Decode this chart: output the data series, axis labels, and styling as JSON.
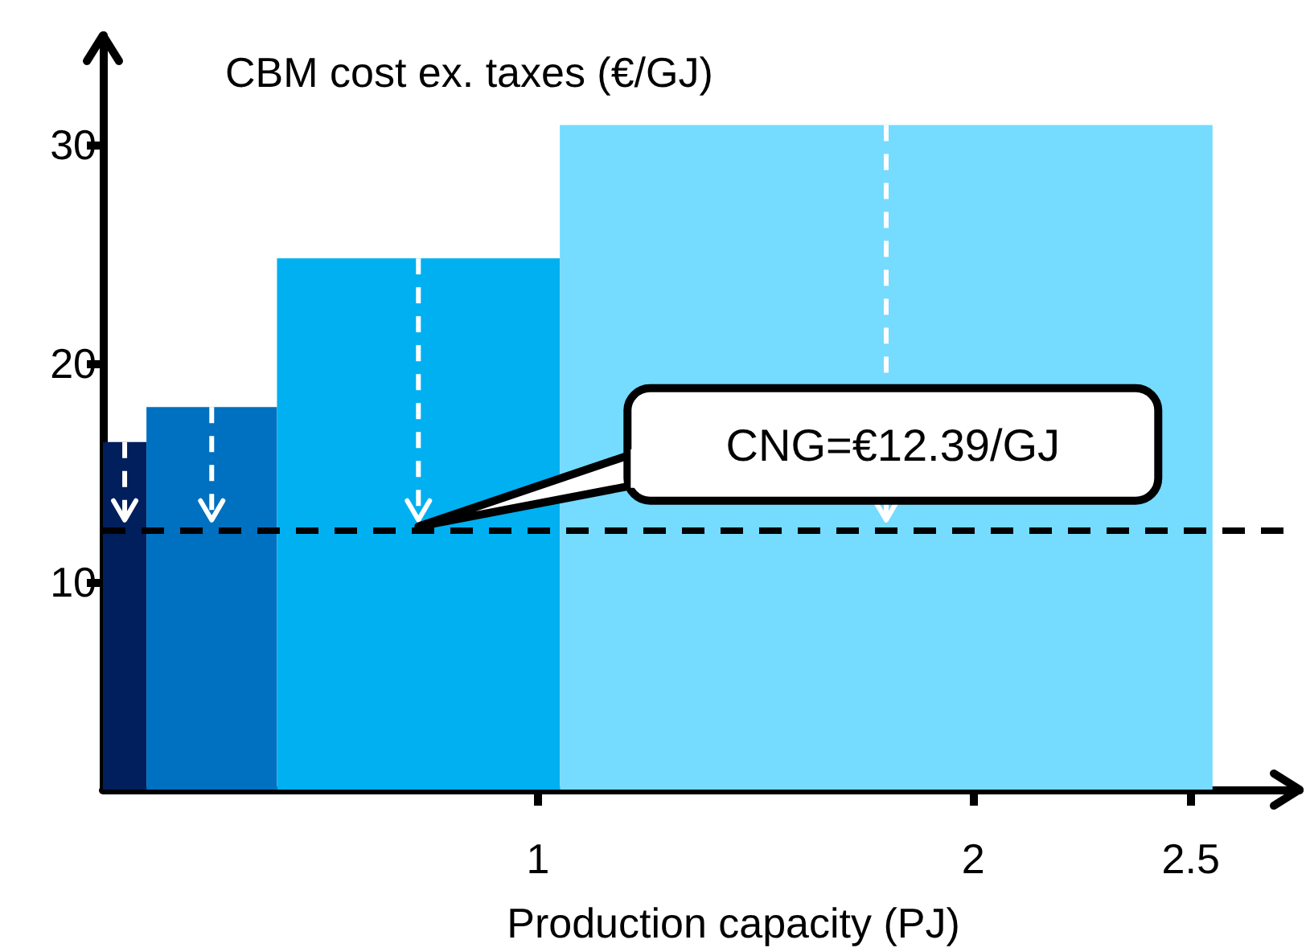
{
  "chart_data": {
    "type": "histogram",
    "ylabel": "CBM cost ex. taxes (€/GJ)",
    "xlabel": "Production capacity (PJ)",
    "bins": [
      0,
      0.1,
      0.4,
      1.05,
      2.55
    ],
    "values": [
      16.4,
      18,
      24.8,
      30.9
    ],
    "colors": [
      "#001f5c",
      "#0070c0",
      "#00b0f0",
      "#75dbff"
    ],
    "xlim": [
      0,
      2.75
    ],
    "xticks": [
      1,
      2,
      2.5
    ],
    "ylim": [
      0.5,
      35
    ],
    "yticks": [
      10,
      20,
      30
    ],
    "ref_lines": [
      {
        "axis": "y",
        "value": 12.39,
        "label": "CNG=€12.39/GJ",
        "color": "#000000",
        "line_style": "dashed"
      }
    ],
    "grid": false
  }
}
